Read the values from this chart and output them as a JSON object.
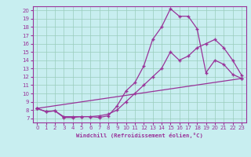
{
  "xlabel": "Windchill (Refroidissement éolien,°C)",
  "bg_color": "#c8eef0",
  "line_color": "#993399",
  "grid_color": "#99ccbb",
  "xlim": [
    -0.5,
    23.5
  ],
  "ylim": [
    6.5,
    20.5
  ],
  "xticks": [
    0,
    1,
    2,
    3,
    4,
    5,
    6,
    7,
    8,
    9,
    10,
    11,
    12,
    13,
    14,
    15,
    16,
    17,
    18,
    19,
    20,
    21,
    22,
    23
  ],
  "yticks": [
    7,
    8,
    9,
    10,
    11,
    12,
    13,
    14,
    15,
    16,
    17,
    18,
    19,
    20
  ],
  "line1_x": [
    0,
    1,
    2,
    3,
    4,
    5,
    6,
    7,
    8,
    9,
    10,
    11,
    12,
    13,
    14,
    15,
    16,
    17,
    18,
    19,
    20,
    21,
    22,
    23
  ],
  "line1_y": [
    8.2,
    7.8,
    7.9,
    7.1,
    7.1,
    7.2,
    7.2,
    7.1,
    7.3,
    8.5,
    10.3,
    11.3,
    13.3,
    16.5,
    18.0,
    20.2,
    19.3,
    19.3,
    17.8,
    12.5,
    14.0,
    13.5,
    12.3,
    11.8
  ],
  "line2_x": [
    0,
    1,
    2,
    3,
    4,
    5,
    6,
    7,
    8,
    9,
    10,
    11,
    12,
    13,
    14,
    15,
    16,
    17,
    18,
    19,
    20,
    21,
    22,
    23
  ],
  "line2_y": [
    8.2,
    7.8,
    7.9,
    7.2,
    7.2,
    7.2,
    7.2,
    7.3,
    7.5,
    8.0,
    9.0,
    10.0,
    11.0,
    12.0,
    13.0,
    15.0,
    14.0,
    14.5,
    15.5,
    16.0,
    16.5,
    15.5,
    14.0,
    12.2
  ],
  "line3_x": [
    0,
    23
  ],
  "line3_y": [
    8.2,
    11.8
  ]
}
